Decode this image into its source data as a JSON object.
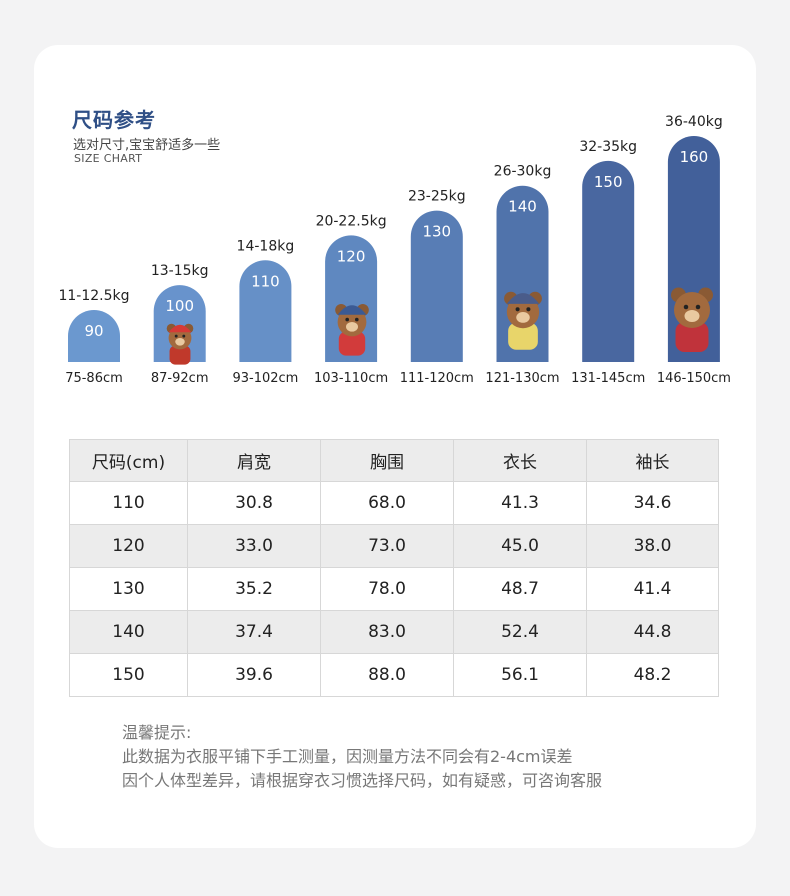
{
  "header": {
    "title": "尺码参考",
    "subtitle": "选对尺寸,宝宝舒适多一些",
    "tagline": "SIZE CHART"
  },
  "chart_data": {
    "type": "bar",
    "categories": [
      "75-86cm",
      "87-92cm",
      "93-102cm",
      "103-110cm",
      "111-120cm",
      "121-130cm",
      "131-145cm",
      "146-150cm"
    ],
    "sizes": [
      "90",
      "100",
      "110",
      "120",
      "130",
      "140",
      "150",
      "160"
    ],
    "weights": [
      "11-12.5kg",
      "13-15kg",
      "14-18kg",
      "20-22.5kg",
      "23-25kg",
      "26-30kg",
      "32-35kg",
      "36-40kg"
    ],
    "values": [
      90,
      100,
      110,
      120,
      130,
      140,
      150,
      160
    ],
    "colors": [
      "#6b98cf",
      "#6893cc",
      "#6690c7",
      "#5f88c0",
      "#587db5",
      "#5073ab",
      "#4967a0",
      "#42609a"
    ]
  },
  "table": {
    "headers": [
      "尺码(cm)",
      "肩宽",
      "胸围",
      "衣长",
      "袖长"
    ],
    "rows": [
      [
        "110",
        "30.8",
        "68.0",
        "41.3",
        "34.6"
      ],
      [
        "120",
        "33.0",
        "73.0",
        "45.0",
        "38.0"
      ],
      [
        "130",
        "35.2",
        "78.0",
        "48.7",
        "41.4"
      ],
      [
        "140",
        "37.4",
        "83.0",
        "52.4",
        "44.8"
      ],
      [
        "150",
        "39.6",
        "88.0",
        "56.1",
        "48.2"
      ]
    ]
  },
  "notes": {
    "heading": "温馨提示:",
    "line1": "此数据为衣服平铺下手工测量，因测量方法不同会有2-4cm误差",
    "line2": "因个人体型差异，请根据穿衣习惯选择尺码，如有疑惑，可咨询客服"
  }
}
